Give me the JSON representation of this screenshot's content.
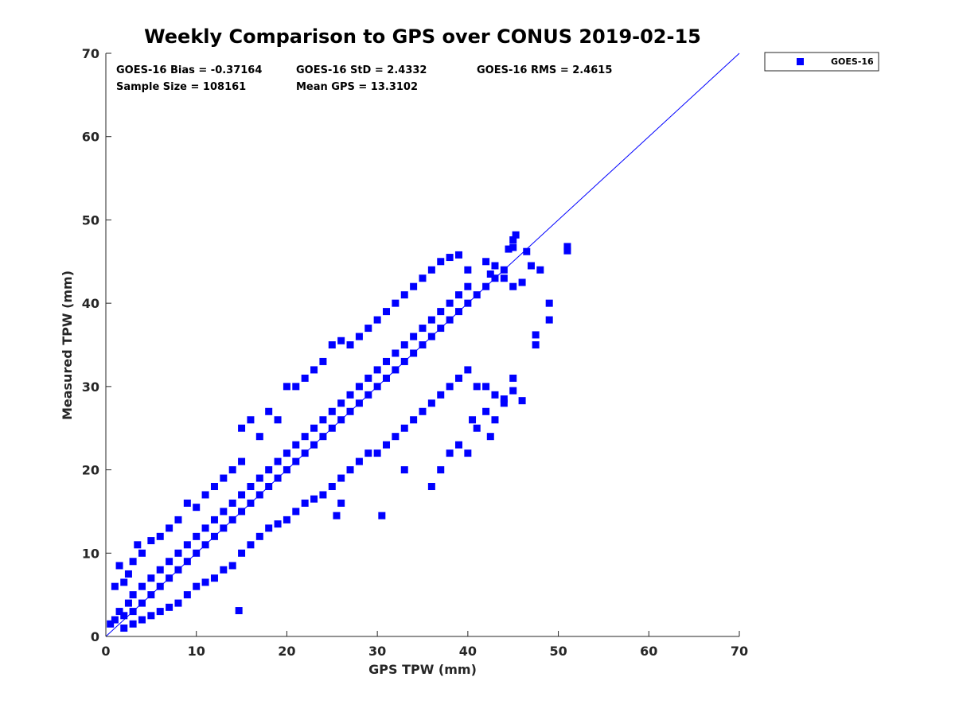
{
  "chart_data": {
    "type": "scatter",
    "title": "Weekly Comparison to GPS over CONUS 2019-02-15",
    "xlabel": "GPS TPW (mm)",
    "ylabel": "Measured TPW (mm)",
    "xlim": [
      0,
      70
    ],
    "ylim": [
      0,
      70
    ],
    "xticks": [
      "0",
      "10",
      "20",
      "30",
      "40",
      "50",
      "60",
      "70"
    ],
    "yticks": [
      "0",
      "10",
      "20",
      "30",
      "40",
      "50",
      "60",
      "70"
    ],
    "grid": false,
    "legend_position": "outside-top-right",
    "series": [
      {
        "name": "GOES-16",
        "color": "#0000ff",
        "marker": "square",
        "points": [
          [
            0.5,
            1.5
          ],
          [
            1,
            2
          ],
          [
            1.5,
            3
          ],
          [
            2,
            2.5
          ],
          [
            2.5,
            4
          ],
          [
            3,
            3
          ],
          [
            3,
            5
          ],
          [
            4,
            4
          ],
          [
            4,
            6
          ],
          [
            5,
            5
          ],
          [
            5,
            7
          ],
          [
            6,
            6
          ],
          [
            6,
            8
          ],
          [
            7,
            7
          ],
          [
            7,
            9
          ],
          [
            8,
            8
          ],
          [
            8,
            10
          ],
          [
            9,
            9
          ],
          [
            9,
            11
          ],
          [
            10,
            10
          ],
          [
            10,
            12
          ],
          [
            11,
            11
          ],
          [
            11,
            13
          ],
          [
            12,
            12
          ],
          [
            12,
            14
          ],
          [
            13,
            13
          ],
          [
            13,
            15
          ],
          [
            14,
            14
          ],
          [
            14,
            16
          ],
          [
            15,
            15
          ],
          [
            15,
            17
          ],
          [
            16,
            16
          ],
          [
            16,
            18
          ],
          [
            17,
            17
          ],
          [
            17,
            19
          ],
          [
            18,
            18
          ],
          [
            18,
            20
          ],
          [
            19,
            19
          ],
          [
            19,
            21
          ],
          [
            20,
            20
          ],
          [
            20,
            22
          ],
          [
            21,
            21
          ],
          [
            21,
            23
          ],
          [
            22,
            22
          ],
          [
            22,
            24
          ],
          [
            23,
            23
          ],
          [
            23,
            25
          ],
          [
            24,
            24
          ],
          [
            24,
            26
          ],
          [
            25,
            25
          ],
          [
            25,
            27
          ],
          [
            26,
            26
          ],
          [
            26,
            28
          ],
          [
            27,
            27
          ],
          [
            27,
            29
          ],
          [
            28,
            28
          ],
          [
            28,
            30
          ],
          [
            29,
            29
          ],
          [
            29,
            31
          ],
          [
            30,
            30
          ],
          [
            30,
            32
          ],
          [
            31,
            31
          ],
          [
            31,
            33
          ],
          [
            32,
            32
          ],
          [
            32,
            34
          ],
          [
            33,
            33
          ],
          [
            33,
            35
          ],
          [
            34,
            34
          ],
          [
            34,
            36
          ],
          [
            35,
            35
          ],
          [
            35,
            37
          ],
          [
            36,
            36
          ],
          [
            36,
            38
          ],
          [
            37,
            37
          ],
          [
            37,
            39
          ],
          [
            38,
            38
          ],
          [
            38,
            40
          ],
          [
            39,
            39
          ],
          [
            39,
            41
          ],
          [
            40,
            40
          ],
          [
            40,
            42
          ],
          [
            41,
            41
          ],
          [
            42,
            42
          ],
          [
            43,
            43
          ],
          [
            44,
            44
          ],
          [
            1,
            6
          ],
          [
            1.5,
            8.5
          ],
          [
            2,
            6.5
          ],
          [
            3,
            9
          ],
          [
            3.5,
            11
          ],
          [
            2.5,
            7.5
          ],
          [
            4,
            10
          ],
          [
            5,
            11.5
          ],
          [
            6,
            12
          ],
          [
            7,
            13
          ],
          [
            8,
            14
          ],
          [
            9,
            16
          ],
          [
            10,
            15.5
          ],
          [
            11,
            17
          ],
          [
            12,
            18
          ],
          [
            13,
            19
          ],
          [
            14,
            20
          ],
          [
            15,
            21
          ],
          [
            15,
            25
          ],
          [
            16,
            26
          ],
          [
            17,
            24
          ],
          [
            18,
            27
          ],
          [
            19,
            26
          ],
          [
            20,
            30
          ],
          [
            21,
            30
          ],
          [
            22,
            31
          ],
          [
            23,
            32
          ],
          [
            24,
            33
          ],
          [
            25,
            35
          ],
          [
            26,
            35.5
          ],
          [
            27,
            35
          ],
          [
            28,
            36
          ],
          [
            29,
            37
          ],
          [
            30,
            38
          ],
          [
            31,
            39
          ],
          [
            32,
            40
          ],
          [
            33,
            41
          ],
          [
            34,
            42
          ],
          [
            35,
            43
          ],
          [
            36,
            44
          ],
          [
            37,
            45
          ],
          [
            38,
            45.5
          ],
          [
            39,
            45.8
          ],
          [
            40,
            44
          ],
          [
            2,
            1
          ],
          [
            3,
            1.5
          ],
          [
            4,
            2
          ],
          [
            5,
            2.5
          ],
          [
            6,
            3
          ],
          [
            7,
            3.5
          ],
          [
            8,
            4
          ],
          [
            9,
            5
          ],
          [
            10,
            6
          ],
          [
            11,
            6.5
          ],
          [
            12,
            7
          ],
          [
            13,
            8
          ],
          [
            14,
            8.5
          ],
          [
            14.7,
            3.1
          ],
          [
            15,
            10
          ],
          [
            16,
            11
          ],
          [
            17,
            12
          ],
          [
            18,
            13
          ],
          [
            19,
            13.5
          ],
          [
            20,
            14
          ],
          [
            21,
            15
          ],
          [
            22,
            16
          ],
          [
            23,
            16.5
          ],
          [
            24,
            17
          ],
          [
            25,
            18
          ],
          [
            26,
            19
          ],
          [
            27,
            20
          ],
          [
            28,
            21
          ],
          [
            29,
            22
          ],
          [
            30,
            22
          ],
          [
            31,
            23
          ],
          [
            32,
            24
          ],
          [
            33,
            25
          ],
          [
            34,
            26
          ],
          [
            35,
            27
          ],
          [
            36,
            28
          ],
          [
            37,
            29
          ],
          [
            38,
            30
          ],
          [
            39,
            31
          ],
          [
            40,
            32
          ],
          [
            41,
            30
          ],
          [
            42,
            30
          ],
          [
            43,
            29
          ],
          [
            44,
            28
          ],
          [
            45,
            31
          ],
          [
            25.5,
            14.5
          ],
          [
            26,
            16
          ],
          [
            30.5,
            14.5
          ],
          [
            33,
            20
          ],
          [
            36,
            18
          ],
          [
            37,
            20
          ],
          [
            38,
            22
          ],
          [
            39,
            23
          ],
          [
            40,
            22
          ],
          [
            42.5,
            24
          ],
          [
            40.5,
            26
          ],
          [
            41,
            25
          ],
          [
            42,
            27
          ],
          [
            43,
            26
          ],
          [
            44,
            28.5
          ],
          [
            45,
            29.5
          ],
          [
            46,
            28.3
          ],
          [
            49,
            40
          ],
          [
            49,
            38
          ],
          [
            47.5,
            36.2
          ],
          [
            47.5,
            35
          ],
          [
            48,
            44
          ],
          [
            47,
            44.5
          ],
          [
            46.5,
            46.2
          ],
          [
            51,
            46.3
          ],
          [
            51,
            46.8
          ],
          [
            45.3,
            48.2
          ],
          [
            45,
            47.6
          ],
          [
            44.5,
            46.5
          ],
          [
            45,
            46.7
          ],
          [
            42,
            45
          ],
          [
            43,
            44.5
          ],
          [
            44,
            43
          ],
          [
            45,
            42
          ],
          [
            46,
            42.5
          ],
          [
            42.5,
            43.5
          ]
        ]
      }
    ],
    "fit_line": {
      "x": [
        0,
        70
      ],
      "y": [
        0,
        70
      ]
    }
  },
  "stats": {
    "bias": "GOES-16 Bias = -0.37164",
    "std": "GOES-16 StD = 2.4332",
    "rms": "GOES-16 RMS = 2.4615",
    "sample": "Sample Size = 108161",
    "mean": "Mean GPS = 13.3102"
  },
  "legend": {
    "label": "GOES-16"
  }
}
